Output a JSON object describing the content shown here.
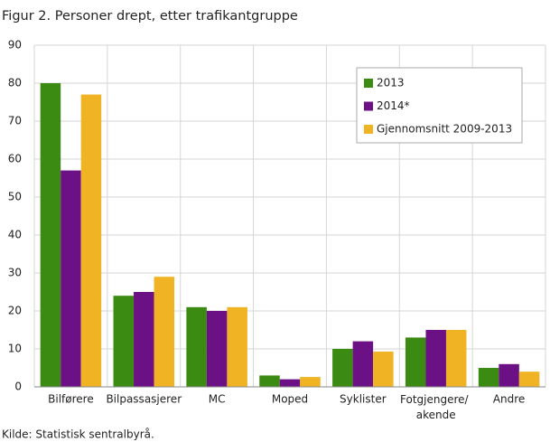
{
  "chart_data": {
    "type": "bar",
    "title": "Figur 2. Personer drept, etter trafikantgruppe",
    "source": "Kilde: Statistisk sentralbyrå.",
    "categories": [
      "Bilførere",
      "Bilpassasjerer",
      "MC",
      "Moped",
      "Syklister",
      "Fotgjengere/\nakende",
      "Andre"
    ],
    "series": [
      {
        "name": "2013",
        "color": "#3b8a12",
        "values": [
          80,
          24,
          21,
          3,
          10,
          13,
          5
        ]
      },
      {
        "name": "2014*",
        "color": "#6b1185",
        "values": [
          57,
          25,
          20,
          2,
          12,
          15,
          6
        ]
      },
      {
        "name": "Gjennomsnitt 2009-2013",
        "color": "#efb324",
        "values": [
          77,
          29,
          21,
          2.6,
          9.3,
          15,
          4
        ]
      }
    ],
    "ylim": [
      0,
      90
    ],
    "yticks": [
      0,
      10,
      20,
      30,
      40,
      50,
      60,
      70,
      80,
      90
    ],
    "grid": true,
    "legend": "top-right"
  }
}
